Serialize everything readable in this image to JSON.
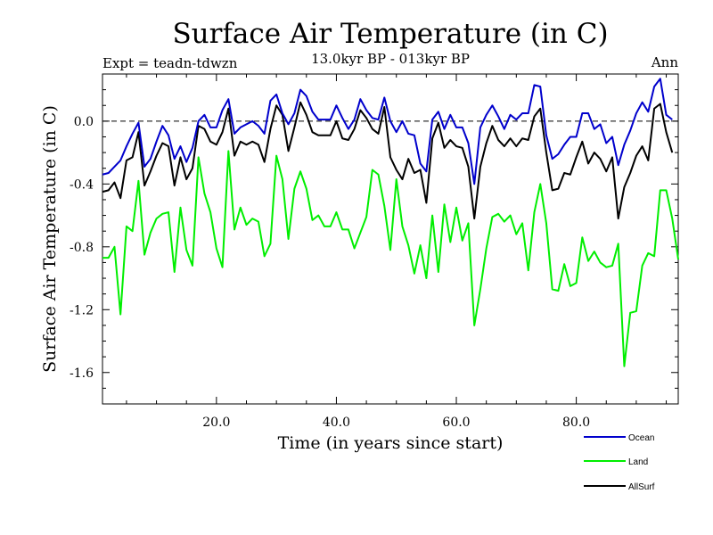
{
  "chart_data": {
    "type": "line",
    "title": "Surface Air Temperature (in C)",
    "subtitle": "13.0kyr BP - 013kyr BP",
    "left_label": "Expt = teadn-tdwzn",
    "right_label": "Ann",
    "xlabel": "Time (in years since start)",
    "ylabel": "Surface Air Temperature (in C)",
    "xlim": [
      1,
      97
    ],
    "ylim": [
      -1.8,
      0.3
    ],
    "xticks": [
      20,
      40,
      60,
      80
    ],
    "xtick_labels": [
      "20.0",
      "40.0",
      "60.0",
      "80.0"
    ],
    "yticks": [
      0.0,
      -0.4,
      -0.8,
      -1.2,
      -1.6
    ],
    "ytick_labels": [
      "0.0",
      "-0.4",
      "-0.8",
      "-1.2",
      "-1.6"
    ],
    "reference_line": 0.0,
    "x_start": 1,
    "series": [
      {
        "name": "Ocean",
        "color": "#0000cc",
        "values": [
          -0.34,
          -0.33,
          -0.29,
          -0.25,
          -0.16,
          -0.08,
          -0.01,
          -0.29,
          -0.24,
          -0.13,
          -0.03,
          -0.09,
          -0.24,
          -0.16,
          -0.26,
          -0.17,
          0.0,
          0.04,
          -0.04,
          -0.04,
          0.07,
          0.14,
          -0.08,
          -0.04,
          -0.02,
          0.0,
          -0.03,
          -0.08,
          0.13,
          0.17,
          0.05,
          -0.02,
          0.05,
          0.2,
          0.16,
          0.06,
          0.01,
          0.01,
          0.01,
          0.1,
          0.02,
          -0.05,
          0.01,
          0.14,
          0.07,
          0.02,
          0.01,
          0.15,
          0.0,
          -0.07,
          0.0,
          -0.08,
          -0.09,
          -0.27,
          -0.32,
          0.01,
          0.06,
          -0.05,
          0.04,
          -0.04,
          -0.04,
          -0.14,
          -0.4,
          -0.04,
          0.04,
          0.1,
          0.03,
          -0.05,
          0.04,
          0.01,
          0.05,
          0.05,
          0.23,
          0.22,
          -0.09,
          -0.24,
          -0.21,
          -0.15,
          -0.1,
          -0.1,
          0.05,
          0.05,
          -0.05,
          -0.02,
          -0.14,
          -0.1,
          -0.28,
          -0.15,
          -0.06,
          0.05,
          0.12,
          0.06,
          0.22,
          0.27,
          0.04,
          0.01
        ]
      },
      {
        "name": "Land",
        "color": "#00ee00",
        "values": [
          -0.87,
          -0.87,
          -0.8,
          -1.23,
          -0.67,
          -0.7,
          -0.38,
          -0.85,
          -0.71,
          -0.62,
          -0.59,
          -0.58,
          -0.96,
          -0.55,
          -0.82,
          -0.92,
          -0.23,
          -0.46,
          -0.58,
          -0.81,
          -0.93,
          -0.19,
          -0.69,
          -0.55,
          -0.66,
          -0.62,
          -0.64,
          -0.86,
          -0.78,
          -0.22,
          -0.37,
          -0.75,
          -0.43,
          -0.32,
          -0.43,
          -0.63,
          -0.6,
          -0.67,
          -0.67,
          -0.58,
          -0.69,
          -0.69,
          -0.81,
          -0.71,
          -0.61,
          -0.31,
          -0.34,
          -0.54,
          -0.82,
          -0.37,
          -0.67,
          -0.79,
          -0.97,
          -0.79,
          -1.0,
          -0.6,
          -0.96,
          -0.53,
          -0.77,
          -0.55,
          -0.76,
          -0.65,
          -1.3,
          -1.07,
          -0.81,
          -0.61,
          -0.59,
          -0.64,
          -0.6,
          -0.72,
          -0.65,
          -0.95,
          -0.58,
          -0.4,
          -0.65,
          -1.07,
          -1.08,
          -0.91,
          -1.05,
          -1.03,
          -0.74,
          -0.89,
          -0.83,
          -0.9,
          -0.93,
          -0.92,
          -0.78,
          -1.56,
          -1.22,
          -1.21,
          -0.92,
          -0.84,
          -0.86,
          -0.44,
          -0.44,
          -0.62,
          -0.88
        ]
      },
      {
        "name": "AllSurf",
        "color": "#000000",
        "values": [
          -0.45,
          -0.44,
          -0.39,
          -0.49,
          -0.25,
          -0.23,
          -0.07,
          -0.41,
          -0.32,
          -0.22,
          -0.14,
          -0.16,
          -0.41,
          -0.23,
          -0.37,
          -0.3,
          -0.03,
          -0.05,
          -0.13,
          -0.15,
          -0.07,
          0.08,
          -0.22,
          -0.13,
          -0.15,
          -0.13,
          -0.15,
          -0.26,
          -0.05,
          0.1,
          0.04,
          -0.19,
          -0.04,
          0.12,
          0.04,
          -0.07,
          -0.09,
          -0.09,
          -0.09,
          0.0,
          -0.11,
          -0.12,
          -0.05,
          0.07,
          0.02,
          -0.05,
          -0.08,
          0.09,
          -0.23,
          -0.31,
          -0.37,
          -0.24,
          -0.33,
          -0.31,
          -0.52,
          -0.11,
          -0.01,
          -0.17,
          -0.12,
          -0.16,
          -0.17,
          -0.29,
          -0.62,
          -0.29,
          -0.14,
          -0.03,
          -0.12,
          -0.16,
          -0.11,
          -0.16,
          -0.11,
          -0.12,
          0.03,
          0.08,
          -0.2,
          -0.44,
          -0.43,
          -0.33,
          -0.34,
          -0.23,
          -0.13,
          -0.27,
          -0.2,
          -0.24,
          -0.32,
          -0.23,
          -0.62,
          -0.42,
          -0.33,
          -0.22,
          -0.16,
          -0.25,
          0.08,
          0.11,
          -0.07,
          -0.2
        ]
      }
    ],
    "legend_position": "bottom-right"
  }
}
